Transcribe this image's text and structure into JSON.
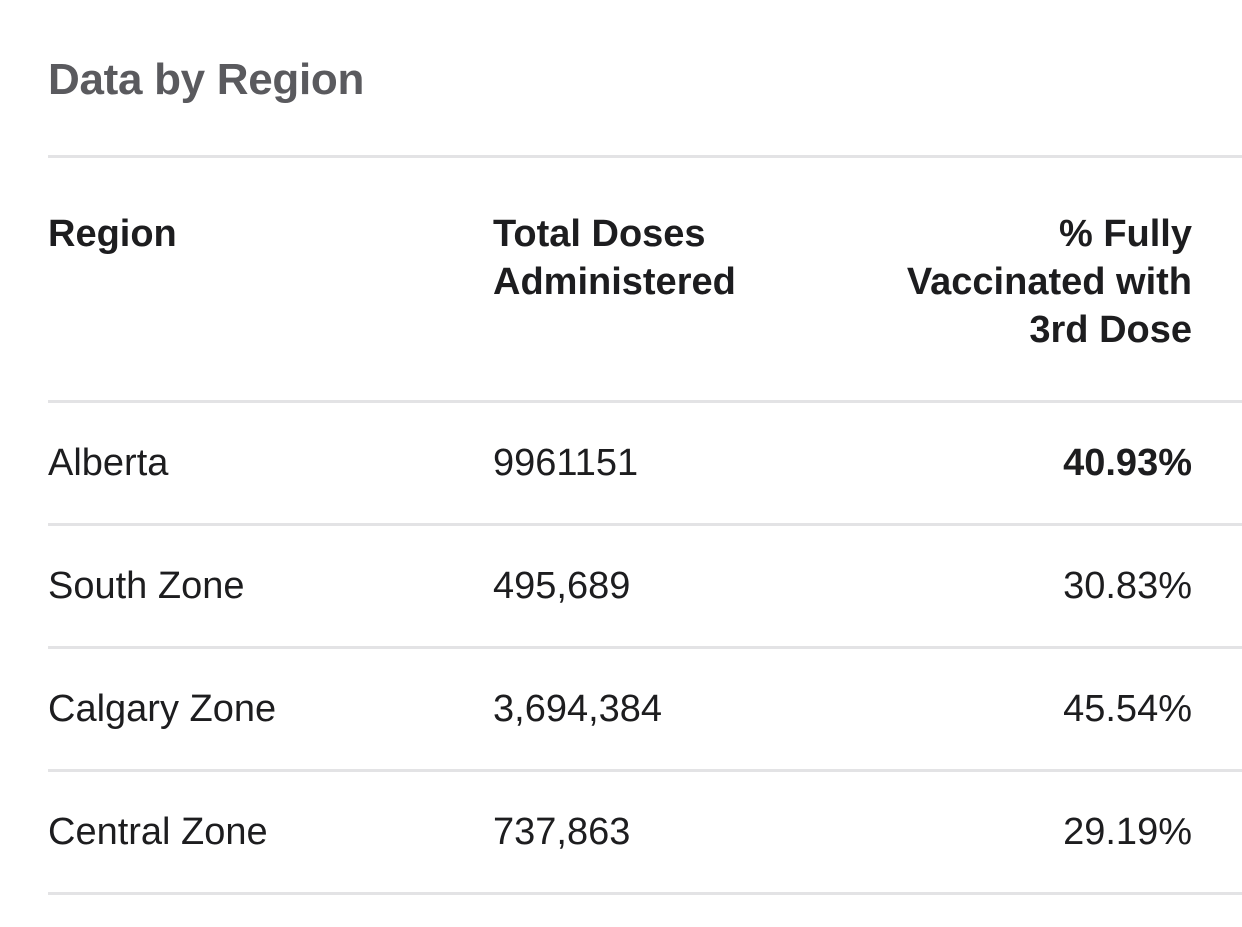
{
  "title": "Data by Region",
  "table": {
    "headers": {
      "region": "Region",
      "doses": "Total Doses Administered",
      "percent": "% Fully Vaccinated with 3rd Dose"
    },
    "rows": [
      {
        "region": "Alberta",
        "doses": "9961151",
        "percent": "40.93%"
      },
      {
        "region": "South Zone",
        "doses": "495,689",
        "percent": "30.83%"
      },
      {
        "region": "Calgary Zone",
        "doses": "3,694,384",
        "percent": "45.54%"
      },
      {
        "region": "Central Zone",
        "doses": "737,863",
        "percent": "29.19%"
      }
    ]
  }
}
